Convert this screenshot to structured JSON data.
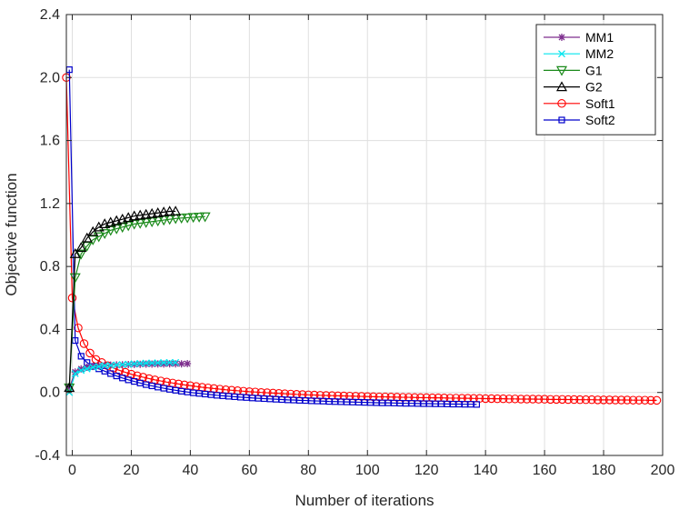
{
  "chart_data": {
    "type": "line",
    "title": "",
    "xlabel": "Number of iterations",
    "ylabel": "Objective function",
    "xlim": [
      -2,
      200
    ],
    "ylim": [
      -0.4,
      2.4
    ],
    "xticks": [
      0,
      20,
      40,
      60,
      80,
      100,
      120,
      140,
      160,
      180,
      200
    ],
    "yticks": [
      -0.4,
      0.0,
      0.4,
      0.8,
      1.2,
      1.6,
      2.0,
      2.4
    ],
    "ytick_labels": [
      "-0.4",
      "0.0",
      "0.4",
      "0.8",
      "1.2",
      "1.6",
      "2.0",
      "2.4"
    ],
    "grid": true,
    "legend_position": "top-right",
    "series": [
      {
        "name": "MM1",
        "color": "#7e2f8e",
        "marker": "asterisk",
        "x": [
          -1,
          1,
          3,
          5,
          7,
          9,
          11,
          13,
          15,
          17,
          19,
          21,
          23,
          25,
          27,
          29,
          31,
          33,
          35,
          37,
          39
        ],
        "y": [
          0.03,
          0.13,
          0.15,
          0.16,
          0.165,
          0.17,
          0.172,
          0.174,
          0.175,
          0.176,
          0.177,
          0.178,
          0.179,
          0.18,
          0.18,
          0.181,
          0.181,
          0.182,
          0.182,
          0.182,
          0.183
        ]
      },
      {
        "name": "MM2",
        "color": "#00e5ee",
        "marker": "x",
        "x": [
          -1,
          1,
          3,
          5,
          7,
          9,
          11,
          13,
          15,
          17,
          19,
          21,
          23,
          25,
          27,
          29,
          31,
          33,
          35
        ],
        "y": [
          0.0,
          0.12,
          0.14,
          0.15,
          0.16,
          0.165,
          0.17,
          0.172,
          0.175,
          0.177,
          0.18,
          0.182,
          0.184,
          0.186,
          0.187,
          0.188,
          0.189,
          0.19,
          0.19
        ]
      },
      {
        "name": "G1",
        "color": "#1a8a1a",
        "marker": "triangle-down",
        "x": [
          -1,
          1,
          3,
          5,
          7,
          9,
          11,
          13,
          15,
          17,
          19,
          21,
          23,
          25,
          27,
          29,
          31,
          33,
          35,
          37,
          39,
          41,
          43,
          45
        ],
        "y": [
          0.03,
          0.73,
          0.88,
          0.93,
          0.97,
          0.99,
          1.01,
          1.03,
          1.04,
          1.05,
          1.06,
          1.07,
          1.075,
          1.08,
          1.085,
          1.09,
          1.095,
          1.1,
          1.105,
          1.108,
          1.11,
          1.113,
          1.115,
          1.117
        ]
      },
      {
        "name": "G2",
        "color": "#000000",
        "marker": "triangle-up",
        "x": [
          -1,
          1,
          3,
          5,
          7,
          9,
          11,
          13,
          15,
          17,
          19,
          21,
          23,
          25,
          27,
          29,
          31,
          33,
          35
        ],
        "y": [
          0.03,
          0.88,
          0.92,
          0.98,
          1.02,
          1.05,
          1.07,
          1.08,
          1.09,
          1.1,
          1.11,
          1.12,
          1.125,
          1.13,
          1.135,
          1.14,
          1.145,
          1.15,
          1.15
        ]
      },
      {
        "name": "Soft1",
        "color": "#ff0000",
        "marker": "circle",
        "x": [
          -2,
          0,
          2,
          4,
          6,
          8,
          10,
          12,
          14,
          16,
          18,
          20,
          22,
          24,
          26,
          28,
          30,
          32,
          34,
          36,
          38,
          40,
          42,
          44,
          46,
          48,
          50,
          52,
          54,
          56,
          58,
          60,
          62,
          64,
          66,
          68,
          70,
          72,
          74,
          76,
          78,
          80,
          82,
          84,
          86,
          88,
          90,
          92,
          94,
          96,
          98,
          100,
          102,
          104,
          106,
          108,
          110,
          112,
          114,
          116,
          118,
          120,
          122,
          124,
          126,
          128,
          130,
          132,
          134,
          136,
          138,
          140,
          142,
          144,
          146,
          148,
          150,
          152,
          154,
          156,
          158,
          160,
          162,
          164,
          166,
          168,
          170,
          172,
          174,
          176,
          178,
          180,
          182,
          184,
          186,
          188,
          190,
          192,
          194,
          196,
          198
        ],
        "y": [
          2.0,
          0.6,
          0.41,
          0.31,
          0.25,
          0.21,
          0.19,
          0.17,
          0.155,
          0.14,
          0.128,
          0.116,
          0.106,
          0.097,
          0.088,
          0.08,
          0.073,
          0.066,
          0.06,
          0.054,
          0.048,
          0.043,
          0.038,
          0.033,
          0.029,
          0.025,
          0.021,
          0.017,
          0.014,
          0.011,
          0.008,
          0.005,
          0.003,
          0.0,
          -0.002,
          -0.004,
          -0.006,
          -0.008,
          -0.01,
          -0.012,
          -0.013,
          -0.015,
          -0.016,
          -0.018,
          -0.019,
          -0.02,
          -0.021,
          -0.022,
          -0.023,
          -0.024,
          -0.025,
          -0.026,
          -0.027,
          -0.028,
          -0.028,
          -0.029,
          -0.03,
          -0.031,
          -0.031,
          -0.032,
          -0.033,
          -0.033,
          -0.034,
          -0.034,
          -0.035,
          -0.036,
          -0.036,
          -0.037,
          -0.037,
          -0.038,
          -0.038,
          -0.039,
          -0.039,
          -0.04,
          -0.04,
          -0.041,
          -0.041,
          -0.042,
          -0.042,
          -0.042,
          -0.043,
          -0.043,
          -0.044,
          -0.044,
          -0.044,
          -0.045,
          -0.045,
          -0.046,
          -0.046,
          -0.046,
          -0.047,
          -0.047,
          -0.047,
          -0.048,
          -0.048,
          -0.048,
          -0.049,
          -0.049,
          -0.049,
          -0.05,
          -0.05
        ]
      },
      {
        "name": "Soft2",
        "color": "#0000cc",
        "marker": "square",
        "x": [
          -1,
          1,
          3,
          5,
          7,
          9,
          11,
          13,
          15,
          17,
          19,
          21,
          23,
          25,
          27,
          29,
          31,
          33,
          35,
          37,
          39,
          41,
          43,
          45,
          47,
          49,
          51,
          53,
          55,
          57,
          59,
          61,
          63,
          65,
          67,
          69,
          71,
          73,
          75,
          77,
          79,
          81,
          83,
          85,
          87,
          89,
          91,
          93,
          95,
          97,
          99,
          101,
          103,
          105,
          107,
          109,
          111,
          113,
          115,
          117,
          119,
          121,
          123,
          125,
          127,
          129,
          131,
          133,
          135,
          137
        ],
        "y": [
          2.05,
          0.33,
          0.23,
          0.19,
          0.165,
          0.15,
          0.135,
          0.12,
          0.105,
          0.092,
          0.08,
          0.07,
          0.06,
          0.05,
          0.042,
          0.034,
          0.027,
          0.02,
          0.014,
          0.008,
          0.003,
          -0.002,
          -0.006,
          -0.01,
          -0.014,
          -0.018,
          -0.021,
          -0.024,
          -0.027,
          -0.03,
          -0.032,
          -0.035,
          -0.037,
          -0.039,
          -0.041,
          -0.043,
          -0.045,
          -0.047,
          -0.048,
          -0.05,
          -0.051,
          -0.053,
          -0.054,
          -0.055,
          -0.057,
          -0.058,
          -0.059,
          -0.06,
          -0.061,
          -0.062,
          -0.063,
          -0.064,
          -0.065,
          -0.066,
          -0.066,
          -0.067,
          -0.068,
          -0.069,
          -0.069,
          -0.07,
          -0.071,
          -0.071,
          -0.072,
          -0.072,
          -0.073,
          -0.074,
          -0.074,
          -0.075,
          -0.075,
          -0.076
        ]
      }
    ]
  }
}
